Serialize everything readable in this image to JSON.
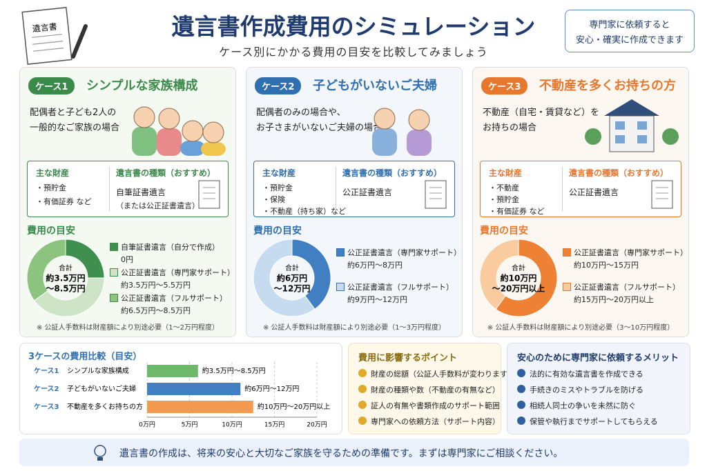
{
  "header": {
    "title": "遺言書作成費用のシミュレーション",
    "subtitle": "ケース別にかかる費用の目安を比較してみましょう",
    "icon_label": "遺言書",
    "callout": [
      "専門家に依頼すると",
      "安心・確実に作成できます"
    ]
  },
  "cases": [
    {
      "badge": "ケース1",
      "title": "シンプルな家族構成",
      "color": "#3a8a4a",
      "bg": "#f4faf2",
      "description": [
        "配偶者と子ども2人の",
        "一般的なご家族の場合"
      ],
      "assets_heading": "主な財産",
      "assets": [
        "・預貯金",
        "・有価証券 など"
      ],
      "will_heading": "遺言書の種類（おすすめ）",
      "will_types": [
        "自筆証書遺言",
        "（または公正証書遺言）"
      ],
      "cost_heading": "費用の目安",
      "total": [
        "合計",
        "約3.5万円",
        "〜8.5万円"
      ],
      "segments": [
        {
          "label": "自筆証書遺言（自分で作成）",
          "amount": "0円",
          "share": 25,
          "color": "#3f8f4f"
        },
        {
          "label": "公正証書遺言（専門家サポート）",
          "amount": "約3.5万円〜5.5万円",
          "share": 40,
          "color": "#cde5c6"
        },
        {
          "label": "公正証書遺言（フルサポート）",
          "amount": "約6.5万円〜8.5万円",
          "share": 35,
          "color": "#8cc47f"
        }
      ],
      "note": "※ 公証人手数料は財産額により別途必要（1〜2万円程度）"
    },
    {
      "badge": "ケース2",
      "title": "子どもがいないご夫婦",
      "color": "#2f6fb0",
      "bg": "#f3f7fc",
      "description": [
        "配偶者のみの場合や、",
        "お子さまがいないご夫婦の場合"
      ],
      "assets_heading": "主な財産",
      "assets": [
        "・預貯金",
        "・保険",
        "・不動産（持ち家）など"
      ],
      "will_heading": "遺言書の種類（おすすめ）",
      "will_types": [
        "公正証書遺言"
      ],
      "cost_heading": "費用の目安",
      "total": [
        "合計",
        "約6万円",
        "〜12万円"
      ],
      "segments": [
        {
          "label": "公正証書遺言（専門家サポート）",
          "amount": "約6万円〜8万円",
          "share": 40,
          "color": "#3f7fc2"
        },
        {
          "label": "公正証書遺言（フルサポート）",
          "amount": "約9万円〜12万円",
          "share": 60,
          "color": "#c6dbf0"
        }
      ],
      "note": "※ 公証人手数料は財産額により別途必要（1〜3万円程度）"
    },
    {
      "badge": "ケース3",
      "title": "不動産を多くお持ちの方",
      "color": "#e8772e",
      "bg": "#fdf7f1",
      "description": [
        "不動産（自宅・賃貸など）を",
        "お持ちの場合"
      ],
      "assets_heading": "主な財産",
      "assets": [
        "・不動産",
        "・預貯金",
        "・有価証券 など"
      ],
      "will_heading": "遺言書の種類（おすすめ）",
      "will_types": [
        "公正証書遺言"
      ],
      "cost_heading": "費用の目安",
      "total": [
        "合計",
        "約10万円",
        "〜20万円以上"
      ],
      "segments": [
        {
          "label": "公正証書遺言（専門家サポート）",
          "amount": "約10万円〜15万円",
          "share": 60,
          "color": "#ee8133"
        },
        {
          "label": "公正証書遺言（フルサポート）",
          "amount": "約15万円〜20万円以上",
          "share": 40,
          "color": "#f9cb9f"
        }
      ],
      "note": "※ 公証人手数料は財産額により別途必要（3〜10万円程度）"
    }
  ],
  "comparison": {
    "title": "3ケースの費用比較（目安）",
    "xlim": [
      0,
      20
    ],
    "xticks": [
      {
        "value": 0,
        "label": "0万円"
      },
      {
        "value": 5,
        "label": "5万円"
      },
      {
        "value": 10,
        "label": "10万円"
      },
      {
        "value": 15,
        "label": "15万円"
      },
      {
        "value": 20,
        "label": "20万円"
      }
    ],
    "rows": [
      {
        "case": "ケース1",
        "name": "シンプルな家族構成",
        "value": 6,
        "value_label": "約3.5万円〜8.5万円",
        "color": "#6dbb6a"
      },
      {
        "case": "ケース2",
        "name": "子どもがいないご夫婦",
        "value": 11,
        "value_label": "約6万円〜12万円",
        "color": "#3f7fc2"
      },
      {
        "case": "ケース3",
        "name": "不動産を多くお持ちの方",
        "value": 12.5,
        "value_label": "約10万円〜20万円以上",
        "color": "#f39a4e"
      }
    ]
  },
  "factors": {
    "title": "費用に影響するポイント",
    "items": [
      "財産の総額（公証人手数料が変わります）",
      "財産の種類や数（不動産の有無など）",
      "証人の有無や書類作成のサポート範囲",
      "専門家への依頼方法（サポート内容）"
    ]
  },
  "benefits": {
    "title": "安心のために専門家に依頼するメリット",
    "items": [
      "法的に有効な遺言書を作成できる",
      "手続きのミスやトラブルを防げる",
      "相続人同士の争いを未然に防ぐ",
      "保管や執行までサポートしてもらえる"
    ]
  },
  "footer": {
    "message": "遺言書の作成は、将来の安心と大切なご家族を守るための準備です。まずは専門家にご相談ください。"
  }
}
